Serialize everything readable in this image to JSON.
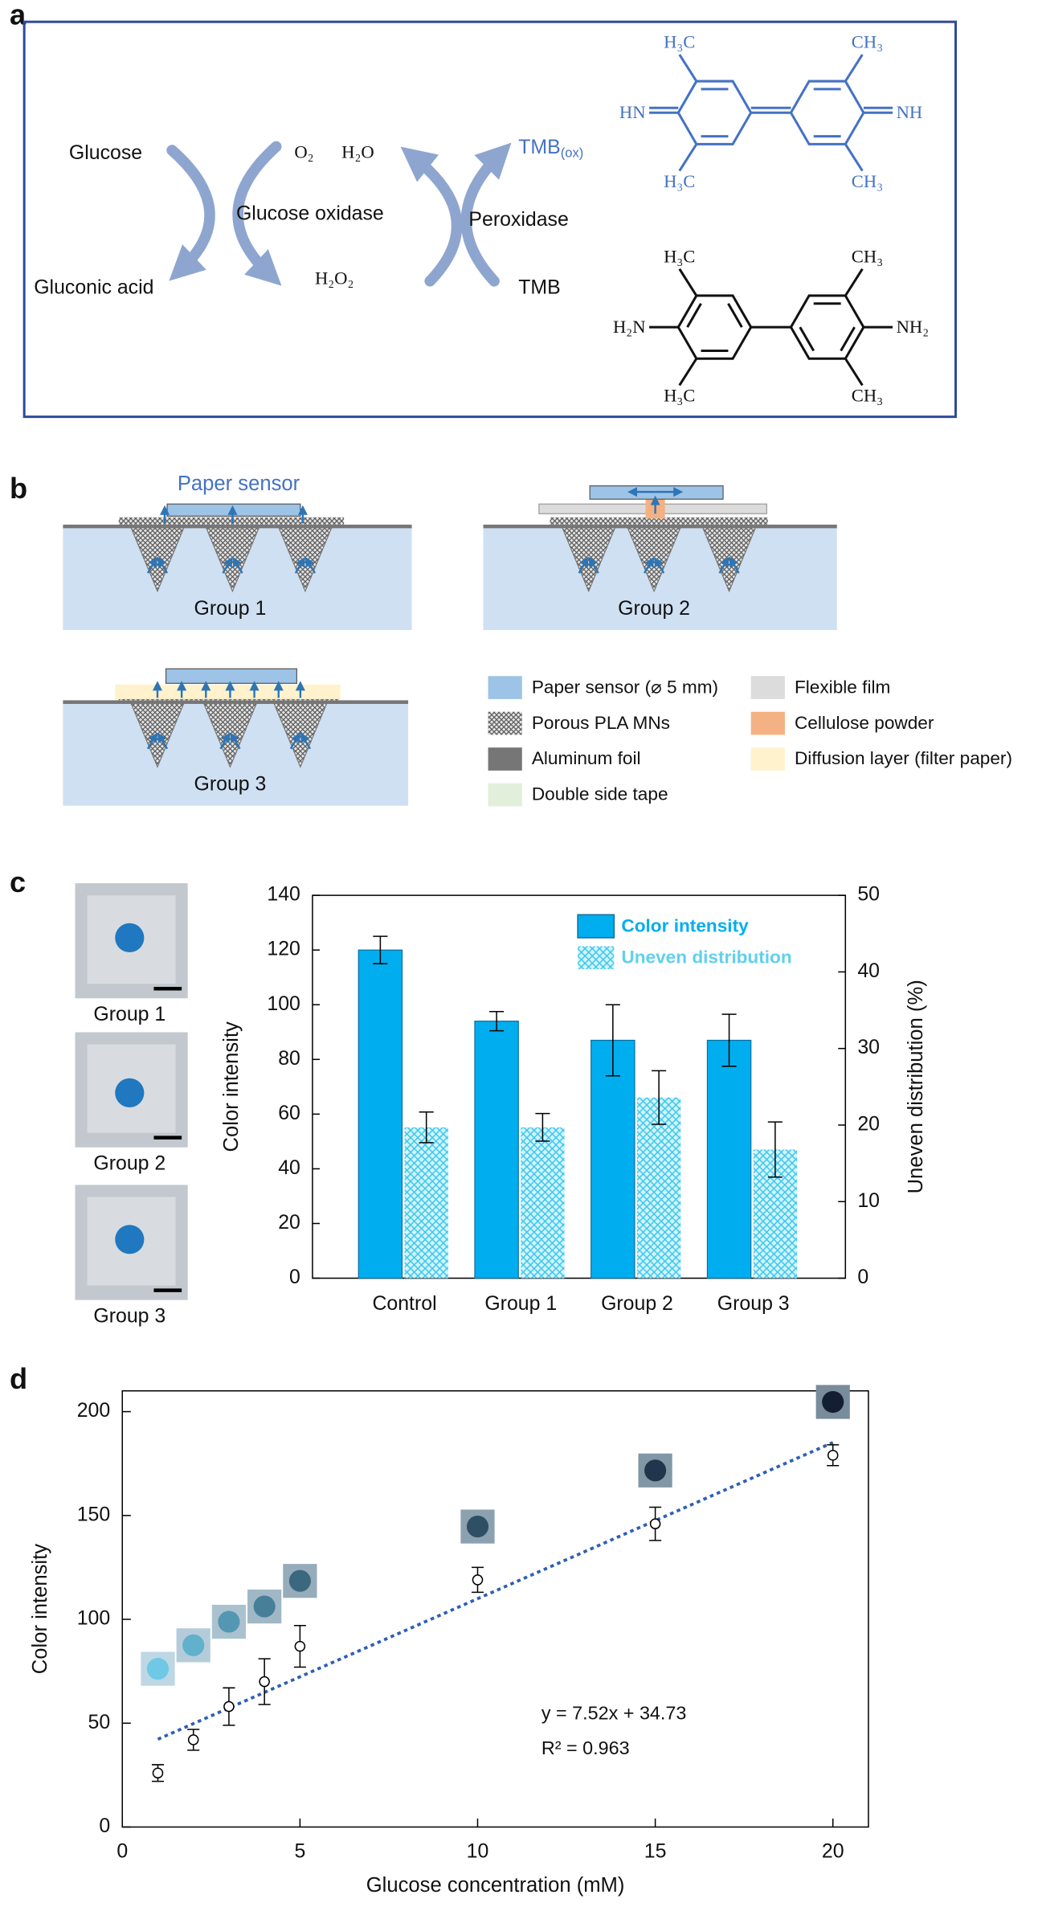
{
  "panel_labels": [
    "a",
    "b",
    "c",
    "d"
  ],
  "panel_a": {
    "glucose": "Glucose",
    "gluconic_acid": "Gluconic acid",
    "o2": "O₂",
    "h2o": "H₂O",
    "glucose_oxidase": "Glucose oxidase",
    "h2o2": "H₂O₂",
    "tmb_ox": {
      "text": "TMB",
      "sub": "(ox)"
    },
    "peroxidase": "Peroxidase",
    "tmb": "TMB",
    "tmb_ox_structure": {
      "top_left": "H₃C",
      "top_right": "CH₃",
      "left": "HN",
      "right": "NH",
      "bottom_left": "H₃C",
      "bottom_right": "CH₃"
    },
    "tmb_structure": {
      "top_left": "H₃C",
      "top_right": "CH₃",
      "left": "H₂N",
      "right": "NH₂",
      "bottom_left": "H₃C",
      "bottom_right": "CH₃"
    }
  },
  "panel_b": {
    "paper_sensor": "Paper sensor",
    "groups": [
      "Group 1",
      "Group 2",
      "Group 3"
    ],
    "legend": [
      {
        "label": "Paper sensor (⌀ 5 mm)",
        "color": "#9dc3e6"
      },
      {
        "label": "Porous PLA MNs",
        "color": "#888888",
        "pattern": "crosshatch"
      },
      {
        "label": "Aluminum foil",
        "color": "#767676"
      },
      {
        "label": "Double side tape",
        "color": "#e2efda"
      },
      {
        "label": "Flexible film",
        "color": "#dcdcdc"
      },
      {
        "label": "Cellulose powder",
        "color": "#f4b183"
      },
      {
        "label": "Diffusion layer (filter paper)",
        "color": "#fff2cc"
      }
    ]
  },
  "panel_c_photos": [
    "Group 1",
    "Group 2",
    "Group 3"
  ],
  "chart_data": [
    {
      "type": "bar",
      "categories": [
        "Control",
        "Group 1",
        "Group 2",
        "Group 3"
      ],
      "series": [
        {
          "name": "Color intensity",
          "color": "#00aeef",
          "values": [
            120,
            94,
            87,
            87
          ],
          "errors": [
            5,
            3.5,
            13,
            9.5
          ]
        },
        {
          "name": "Uneven distribution",
          "color": "#5fd0ef",
          "pattern": "hatch",
          "axis": "y2",
          "values": [
            19.7,
            19.7,
            23.6,
            16.8
          ],
          "errors": [
            2,
            1.8,
            3.5,
            3.6
          ]
        }
      ],
      "ylabel": "Color intensity",
      "y2label": "Uneven distribution (%)",
      "ylim": [
        0,
        140
      ],
      "yticks": [
        0,
        20,
        40,
        60,
        80,
        100,
        120,
        140
      ],
      "y2lim": [
        0,
        50
      ],
      "y2ticks": [
        0,
        10,
        20,
        30,
        40,
        50
      ],
      "legend": "top-right"
    },
    {
      "type": "scatter",
      "x": [
        1,
        2,
        3,
        4,
        5,
        10,
        15,
        20
      ],
      "values": [
        26,
        42,
        58,
        70,
        87,
        119,
        146,
        179
      ],
      "errors": [
        4,
        5,
        9,
        11,
        10,
        6,
        8,
        5
      ],
      "fit": {
        "slope": 7.52,
        "intercept": 34.73,
        "x_range": [
          1,
          20
        ],
        "color": "#2e5fb3"
      },
      "annotations": [
        "y = 7.52x + 34.73",
        "R² = 0.963"
      ],
      "xlabel": "Glucose concentration (mM)",
      "ylabel": "Color intensity",
      "xlim": [
        0,
        21
      ],
      "xticks": [
        0,
        5,
        10,
        15,
        20
      ],
      "ylim": [
        0,
        210
      ],
      "yticks": [
        0,
        50,
        100,
        150,
        200
      ]
    }
  ]
}
